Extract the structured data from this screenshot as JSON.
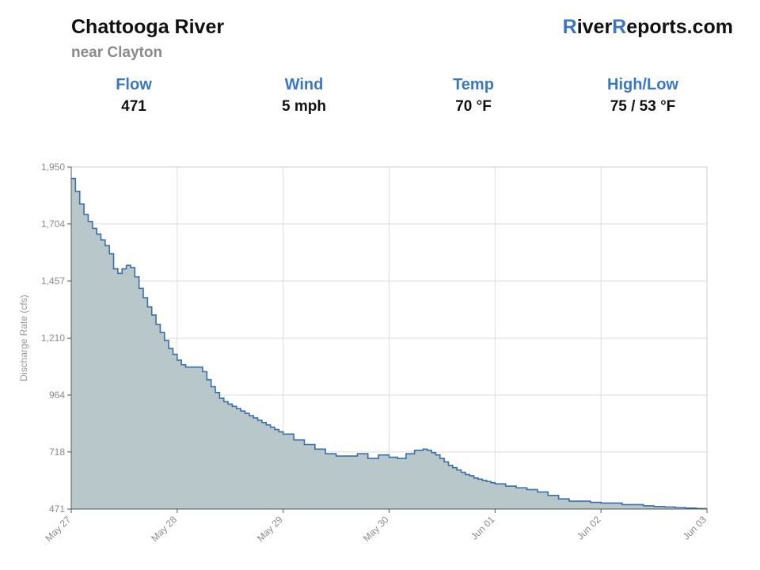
{
  "header": {
    "title": "Chattooga River",
    "subtitle": "near Clayton",
    "logo": {
      "r1": "R",
      "part1": "iver",
      "r2": "R",
      "part2": "eports.com"
    },
    "accent_color": "#3a77c0"
  },
  "stats": [
    {
      "label": "Flow",
      "value": "471"
    },
    {
      "label": "Wind",
      "value": "5 mph"
    },
    {
      "label": "Temp",
      "value": "70 °F"
    },
    {
      "label": "High/Low",
      "value": "75 / 53 °F"
    }
  ],
  "chart_data": {
    "type": "area",
    "ylabel": "Discharge Rate (cfs)",
    "xlabel": "",
    "ylim": [
      471,
      1950
    ],
    "xlim": [
      0,
      6
    ],
    "y_ticks": [
      471,
      718,
      964,
      1210,
      1457,
      1704,
      1950
    ],
    "y_tick_labels": [
      "471",
      "718",
      "964",
      "1,210",
      "1,457",
      "1,704",
      "1,950"
    ],
    "x_ticks": [
      0,
      1,
      2,
      3,
      4,
      5,
      6
    ],
    "x_tick_labels": [
      "May 27",
      "May 28",
      "May 29",
      "May 30",
      "Jun 01",
      "Jun 02",
      "Jun 03"
    ],
    "grid": true,
    "colors": {
      "line": "#3a6ea8",
      "fill": "#b7c7ca"
    },
    "series": [
      {
        "x": [
          0.0,
          0.04,
          0.08,
          0.12,
          0.16,
          0.2,
          0.24,
          0.28,
          0.32,
          0.36,
          0.4,
          0.44,
          0.48,
          0.52,
          0.56,
          0.6,
          0.64,
          0.68,
          0.72,
          0.76,
          0.8,
          0.84,
          0.88,
          0.92,
          0.96,
          1.0,
          1.04,
          1.08,
          1.12,
          1.16,
          1.2,
          1.24,
          1.28,
          1.32,
          1.36,
          1.4,
          1.44,
          1.48,
          1.52,
          1.56,
          1.6,
          1.64,
          1.68,
          1.72,
          1.76,
          1.8,
          1.84,
          1.88,
          1.92,
          1.96,
          2.0,
          2.1,
          2.2,
          2.3,
          2.4,
          2.5,
          2.6,
          2.7,
          2.8,
          2.9,
          3.0,
          3.08,
          3.16,
          3.24,
          3.32,
          3.36,
          3.4,
          3.44,
          3.48,
          3.52,
          3.56,
          3.6,
          3.64,
          3.68,
          3.72,
          3.76,
          3.8,
          3.84,
          3.88,
          3.92,
          3.96,
          4.0,
          4.1,
          4.2,
          4.3,
          4.4,
          4.5,
          4.6,
          4.7,
          4.8,
          4.9,
          5.0,
          5.2,
          5.4,
          5.5,
          5.6,
          5.7,
          5.8,
          5.9,
          6.0
        ],
        "y": [
          1900,
          1845,
          1790,
          1745,
          1715,
          1685,
          1660,
          1635,
          1610,
          1575,
          1510,
          1490,
          1510,
          1525,
          1515,
          1475,
          1425,
          1385,
          1345,
          1310,
          1270,
          1235,
          1200,
          1165,
          1140,
          1115,
          1095,
          1085,
          1085,
          1085,
          1085,
          1065,
          1030,
          1000,
          975,
          950,
          935,
          925,
          915,
          905,
          895,
          885,
          875,
          865,
          855,
          845,
          835,
          825,
          815,
          805,
          795,
          770,
          750,
          730,
          710,
          700,
          700,
          710,
          690,
          705,
          695,
          690,
          710,
          725,
          730,
          725,
          715,
          705,
          690,
          675,
          660,
          650,
          640,
          630,
          620,
          615,
          605,
          600,
          595,
          590,
          585,
          580,
          570,
          563,
          555,
          545,
          530,
          515,
          505,
          505,
          500,
          497,
          490,
          485,
          482,
          480,
          477,
          475,
          473,
          471
        ]
      }
    ]
  }
}
